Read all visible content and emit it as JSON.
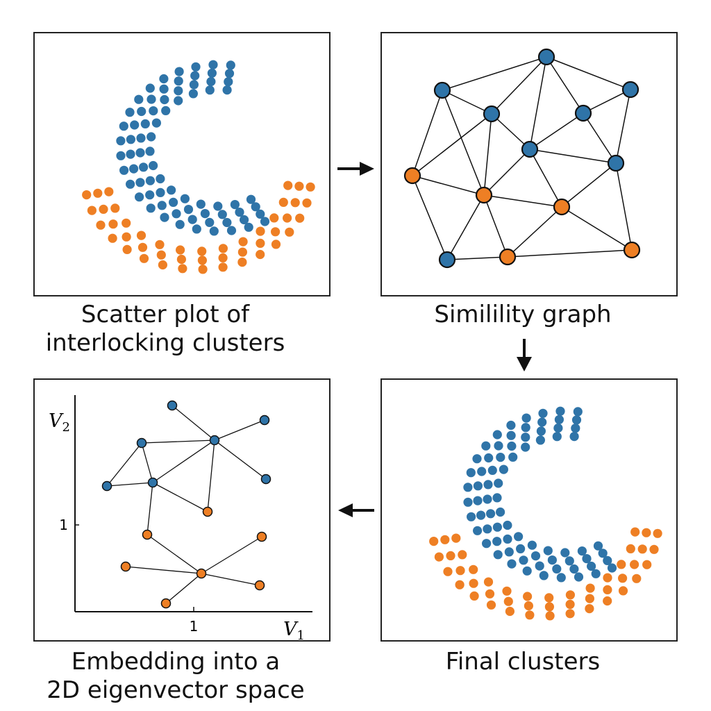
{
  "colors": {
    "blue": "#2f74a8",
    "orange": "#ee7f24",
    "edge": "#111111"
  },
  "captions": {
    "scatter": [
      "Scatter plot of",
      "interlocking clusters"
    ],
    "graph": [
      "Similility graph"
    ],
    "final": [
      "Final clusters"
    ],
    "embedding": [
      "Embedding into a",
      "2D eigenvector space"
    ]
  },
  "arrows": [
    {
      "id": "arrow-right",
      "direction": "right"
    },
    {
      "id": "arrow-down",
      "direction": "down"
    },
    {
      "id": "arrow-left",
      "direction": "left"
    }
  ],
  "embedding_axes": {
    "x_label": "V",
    "x_sub": "1",
    "y_label": "V",
    "y_sub": "2",
    "x_tick": "1",
    "y_tick": "1"
  },
  "clusters": [
    "blue",
    "orange"
  ]
}
